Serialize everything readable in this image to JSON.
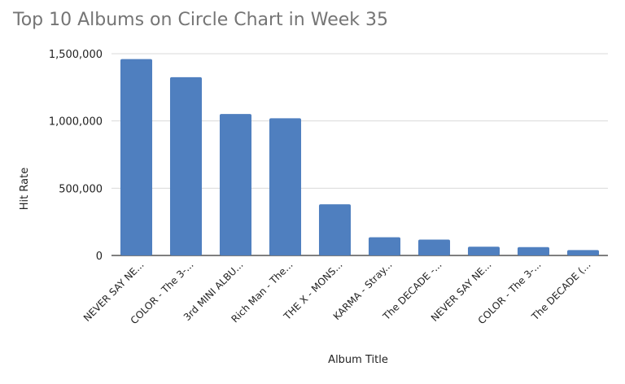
{
  "chart_data": {
    "type": "bar",
    "title": "Top 10 Albums on Circle Chart in Week 35",
    "xlabel": "Album Title",
    "ylabel": "Hit Rate",
    "categories": [
      "NEVER SAY NE...",
      "COLOR - The 3-...",
      "3rd MINI ALBU...",
      "Rich Man - The...",
      "THE X - MONS...",
      "KARMA - Stray...",
      "The DECADE -...",
      "NEVER SAY NE...",
      "COLOR - The 3-...",
      "The DECADE (..."
    ],
    "values": [
      1460000,
      1325000,
      1052000,
      1020000,
      380000,
      135000,
      118000,
      65000,
      62000,
      40000
    ],
    "ylim": [
      0,
      1500000
    ],
    "yticks": [
      0,
      500000,
      1000000,
      1500000
    ],
    "ytick_labels": [
      "0",
      "500,000",
      "1,000,000",
      "1,500,000"
    ],
    "grid": true,
    "bar_color": "#4f7fbf",
    "grid_color": "#d9d9d9",
    "legend": "none"
  }
}
